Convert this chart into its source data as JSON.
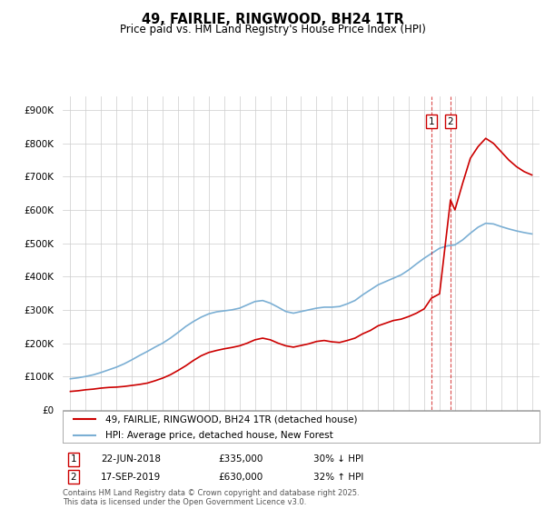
{
  "title": "49, FAIRLIE, RINGWOOD, BH24 1TR",
  "subtitle": "Price paid vs. HM Land Registry's House Price Index (HPI)",
  "ylabel_ticks": [
    "£0",
    "£100K",
    "£200K",
    "£300K",
    "£400K",
    "£500K",
    "£600K",
    "£700K",
    "£800K",
    "£900K"
  ],
  "ytick_values": [
    0,
    100000,
    200000,
    300000,
    400000,
    500000,
    600000,
    700000,
    800000,
    900000
  ],
  "ylim": [
    0,
    940000
  ],
  "xlim_start": 1994.5,
  "xlim_end": 2025.5,
  "red_color": "#cc0000",
  "blue_color": "#7bafd4",
  "grid_color": "#cccccc",
  "bg_color": "#ffffff",
  "legend_label_red": "49, FAIRLIE, RINGWOOD, BH24 1TR (detached house)",
  "legend_label_blue": "HPI: Average price, detached house, New Forest",
  "marker1_date": 2018.47,
  "marker2_date": 2019.71,
  "marker1_label": "1",
  "marker2_label": "2",
  "marker1_text": "22-JUN-2018",
  "marker1_price": "£335,000",
  "marker1_hpi": "30% ↓ HPI",
  "marker2_text": "17-SEP-2019",
  "marker2_price": "£630,000",
  "marker2_hpi": "32% ↑ HPI",
  "footer": "Contains HM Land Registry data © Crown copyright and database right 2025.\nThis data is licensed under the Open Government Licence v3.0.",
  "red_years": [
    1995.0,
    1995.5,
    1996.0,
    1996.5,
    1997.0,
    1997.5,
    1998.0,
    1998.5,
    1999.0,
    1999.5,
    2000.0,
    2000.5,
    2001.0,
    2001.5,
    2002.0,
    2002.5,
    2003.0,
    2003.5,
    2004.0,
    2004.5,
    2005.0,
    2005.5,
    2006.0,
    2006.5,
    2007.0,
    2007.5,
    2008.0,
    2008.5,
    2009.0,
    2009.5,
    2010.0,
    2010.5,
    2011.0,
    2011.5,
    2012.0,
    2012.5,
    2013.0,
    2013.5,
    2014.0,
    2014.5,
    2015.0,
    2015.5,
    2016.0,
    2016.5,
    2017.0,
    2017.5,
    2018.0,
    2018.47,
    2019.0,
    2019.71,
    2020.0,
    2020.5,
    2021.0,
    2021.5,
    2022.0,
    2022.5,
    2023.0,
    2023.5,
    2024.0,
    2024.5,
    2025.0
  ],
  "red_values": [
    55000,
    57000,
    60000,
    62000,
    65000,
    67000,
    68000,
    70000,
    73000,
    76000,
    80000,
    87000,
    95000,
    105000,
    118000,
    132000,
    148000,
    162000,
    172000,
    178000,
    183000,
    187000,
    192000,
    200000,
    210000,
    215000,
    210000,
    200000,
    192000,
    188000,
    193000,
    198000,
    205000,
    208000,
    204000,
    202000,
    208000,
    215000,
    228000,
    238000,
    252000,
    260000,
    268000,
    272000,
    280000,
    290000,
    303000,
    335000,
    348000,
    630000,
    600000,
    680000,
    755000,
    790000,
    815000,
    800000,
    775000,
    750000,
    730000,
    715000,
    705000
  ],
  "blue_years": [
    1995.0,
    1995.5,
    1996.0,
    1996.5,
    1997.0,
    1997.5,
    1998.0,
    1998.5,
    1999.0,
    1999.5,
    2000.0,
    2000.5,
    2001.0,
    2001.5,
    2002.0,
    2002.5,
    2003.0,
    2003.5,
    2004.0,
    2004.5,
    2005.0,
    2005.5,
    2006.0,
    2006.5,
    2007.0,
    2007.5,
    2008.0,
    2008.5,
    2009.0,
    2009.5,
    2010.0,
    2010.5,
    2011.0,
    2011.5,
    2012.0,
    2012.5,
    2013.0,
    2013.5,
    2014.0,
    2014.5,
    2015.0,
    2015.5,
    2016.0,
    2016.5,
    2017.0,
    2017.5,
    2018.0,
    2018.5,
    2019.0,
    2019.5,
    2020.0,
    2020.5,
    2021.0,
    2021.5,
    2022.0,
    2022.5,
    2023.0,
    2023.5,
    2024.0,
    2024.5,
    2025.0
  ],
  "blue_values": [
    93000,
    96000,
    100000,
    105000,
    112000,
    120000,
    128000,
    138000,
    150000,
    163000,
    175000,
    188000,
    200000,
    215000,
    232000,
    250000,
    265000,
    278000,
    288000,
    294000,
    297000,
    300000,
    305000,
    315000,
    325000,
    328000,
    320000,
    308000,
    295000,
    290000,
    295000,
    300000,
    305000,
    308000,
    308000,
    310000,
    318000,
    328000,
    345000,
    360000,
    375000,
    385000,
    395000,
    405000,
    420000,
    438000,
    455000,
    470000,
    485000,
    492000,
    495000,
    510000,
    530000,
    548000,
    560000,
    558000,
    550000,
    543000,
    537000,
    532000,
    528000
  ]
}
